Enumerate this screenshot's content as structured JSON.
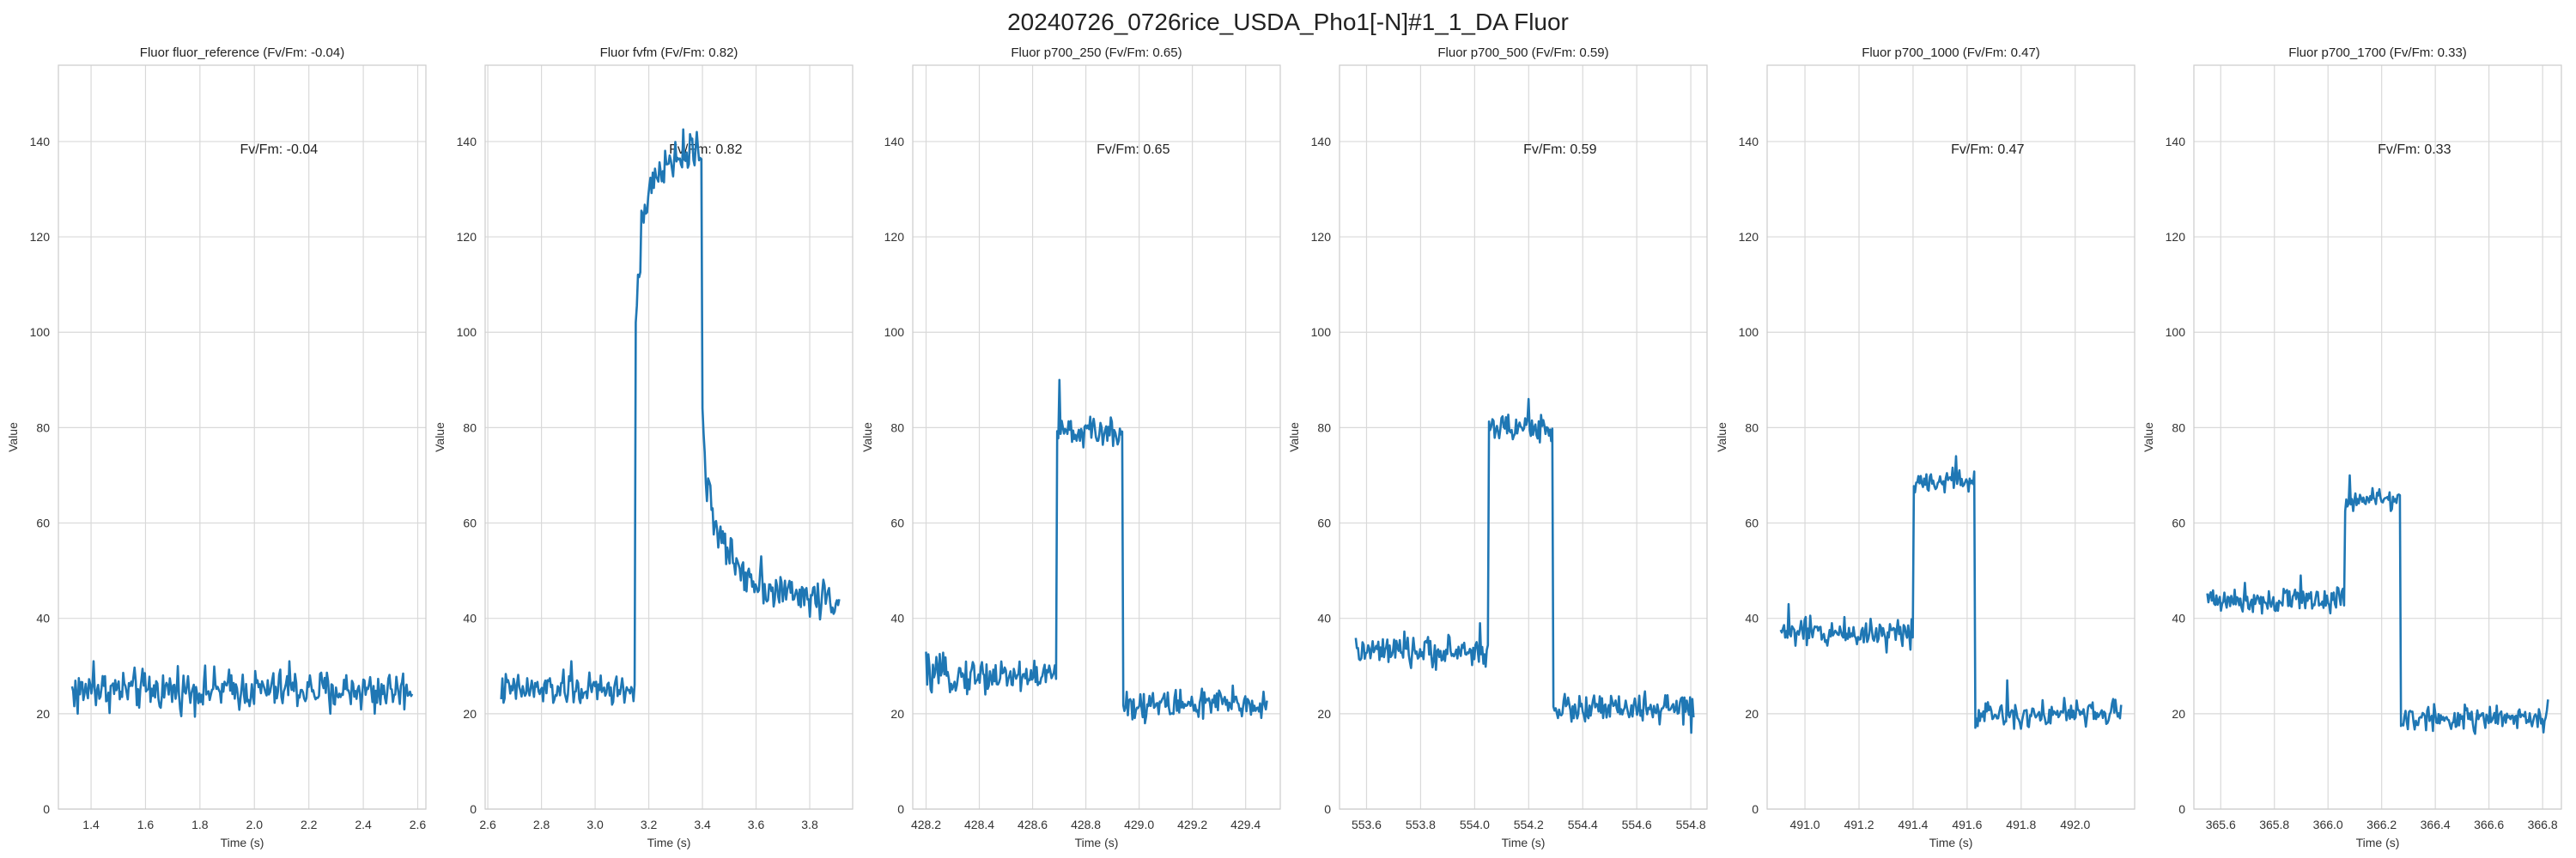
{
  "suptitle": "20240726_0726rice_USDA_Pho1[-N]#1_1_DA Fluor",
  "colors": {
    "series": "#1f77b4",
    "grid": "#d9d9d9"
  },
  "chart_data": [
    {
      "type": "line",
      "title": "Fluor fluor_reference (Fv/Fm: -0.04)",
      "annotation": "Fv/Fm: -0.04",
      "xlabel": "Time (s)",
      "ylabel": "Value",
      "xlim": [
        1.28,
        2.63
      ],
      "ylim": [
        0,
        156
      ],
      "xticks": [
        1.4,
        1.6,
        1.8,
        2.0,
        2.2,
        2.4,
        2.6
      ],
      "xticklabels": [
        "1.4",
        "1.6",
        "1.8",
        "2.0",
        "2.2",
        "2.4",
        "2.6"
      ],
      "yticks": [
        0,
        20,
        40,
        60,
        80,
        100,
        120,
        140
      ],
      "yticklabels": [
        "0",
        "20",
        "40",
        "60",
        "80",
        "100",
        "120",
        "140"
      ],
      "grid": true,
      "x_range": [
        1.33,
        2.58
      ],
      "segments": [
        {
          "from": 1.33,
          "to": 2.58,
          "base": 25,
          "amp": 3.2
        }
      ],
      "peaks": [
        {
          "x": 1.41,
          "y": 31
        },
        {
          "x": 1.35,
          "y": 20
        },
        {
          "x": 1.72,
          "y": 30
        },
        {
          "x": 2.13,
          "y": 31
        },
        {
          "x": 2.28,
          "y": 20
        },
        {
          "x": 2.44,
          "y": 20
        }
      ]
    },
    {
      "type": "line",
      "title": "Fluor fvfm (Fv/Fm: 0.82)",
      "annotation": "Fv/Fm: 0.82",
      "xlabel": "Time (s)",
      "ylabel": "Value",
      "xlim": [
        2.59,
        3.96
      ],
      "ylim": [
        0,
        156
      ],
      "xticks": [
        2.6,
        2.8,
        3.0,
        3.2,
        3.4,
        3.6,
        3.8
      ],
      "xticklabels": [
        "2.6",
        "2.8",
        "3.0",
        "3.2",
        "3.4",
        "3.6",
        "3.8"
      ],
      "yticks": [
        0,
        20,
        40,
        60,
        80,
        100,
        120,
        140
      ],
      "yticklabels": [
        "0",
        "20",
        "40",
        "60",
        "80",
        "100",
        "120",
        "140"
      ],
      "grid": true,
      "x_range": [
        2.65,
        3.91
      ],
      "segments": [
        {
          "from": 2.65,
          "to": 3.15,
          "base": 25,
          "amp": 2.6
        },
        {
          "from": 3.15,
          "to": 3.17,
          "base": 100,
          "amp": 6,
          "end": 112
        },
        {
          "from": 3.17,
          "to": 3.4,
          "base": 121,
          "amp": 3,
          "end": 138
        },
        {
          "from": 3.4,
          "to": 3.44,
          "base": 85,
          "amp": 3,
          "end": 65
        },
        {
          "from": 3.44,
          "to": 3.91,
          "base": 60,
          "amp": 3,
          "end": 44
        }
      ],
      "peaks": [
        {
          "x": 3.38,
          "y": 142
        },
        {
          "x": 2.91,
          "y": 31
        },
        {
          "x": 3.62,
          "y": 53
        }
      ]
    },
    {
      "type": "line",
      "title": "Fluor p700_250 (Fv/Fm: 0.65)",
      "annotation": "Fv/Fm: 0.65",
      "xlabel": "Time (s)",
      "ylabel": "Value",
      "xlim": [
        428.15,
        429.53
      ],
      "ylim": [
        0,
        156
      ],
      "xticks": [
        428.2,
        428.4,
        428.6,
        428.8,
        429.0,
        429.2,
        429.4
      ],
      "xticklabels": [
        "428.2",
        "428.4",
        "428.6",
        "428.8",
        "429.0",
        "429.2",
        "429.4"
      ],
      "yticks": [
        0,
        20,
        40,
        60,
        80,
        100,
        120,
        140
      ],
      "yticklabels": [
        "0",
        "20",
        "40",
        "60",
        "80",
        "100",
        "120",
        "140"
      ],
      "grid": true,
      "x_range": [
        428.2,
        429.48
      ],
      "segments": [
        {
          "from": 428.2,
          "to": 428.69,
          "base": 28,
          "amp": 2.8
        },
        {
          "from": 428.69,
          "to": 428.94,
          "base": 79,
          "amp": 2.2
        },
        {
          "from": 428.94,
          "to": 429.48,
          "base": 22,
          "amp": 2.6
        }
      ],
      "peaks": [
        {
          "x": 428.7,
          "y": 90
        },
        {
          "x": 428.2,
          "y": 33
        },
        {
          "x": 429.02,
          "y": 18
        }
      ]
    },
    {
      "type": "line",
      "title": "Fluor p700_500 (Fv/Fm: 0.59)",
      "annotation": "Fv/Fm: 0.59",
      "xlabel": "Time (s)",
      "ylabel": "Value",
      "xlim": [
        553.5,
        554.86
      ],
      "ylim": [
        0,
        156
      ],
      "xticks": [
        553.6,
        553.8,
        554.0,
        554.2,
        554.4,
        554.6,
        554.8
      ],
      "xticklabels": [
        "553.6",
        "553.8",
        "554.0",
        "554.2",
        "554.4",
        "554.6",
        "554.8"
      ],
      "yticks": [
        0,
        20,
        40,
        60,
        80,
        100,
        120,
        140
      ],
      "yticklabels": [
        "0",
        "20",
        "40",
        "60",
        "80",
        "100",
        "120",
        "140"
      ],
      "grid": true,
      "x_range": [
        553.56,
        554.81
      ],
      "segments": [
        {
          "from": 553.56,
          "to": 554.05,
          "base": 33,
          "amp": 2.4
        },
        {
          "from": 554.05,
          "to": 554.29,
          "base": 80,
          "amp": 2.2
        },
        {
          "from": 554.29,
          "to": 554.81,
          "base": 21,
          "amp": 2.4
        }
      ],
      "peaks": [
        {
          "x": 554.2,
          "y": 86
        },
        {
          "x": 554.02,
          "y": 39
        },
        {
          "x": 554.8,
          "y": 16
        }
      ]
    },
    {
      "type": "line",
      "title": "Fluor p700_1000 (Fv/Fm: 0.47)",
      "annotation": "Fv/Fm: 0.47",
      "xlabel": "Time (s)",
      "ylabel": "Value",
      "xlim": [
        490.86,
        492.22
      ],
      "ylim": [
        0,
        156
      ],
      "xticks": [
        491.0,
        491.2,
        491.4,
        491.6,
        491.8,
        492.0
      ],
      "xticklabels": [
        "491.0",
        "491.2",
        "491.4",
        "491.6",
        "491.8",
        "492.0"
      ],
      "yticks": [
        0,
        20,
        40,
        60,
        80,
        100,
        120,
        140
      ],
      "yticklabels": [
        "0",
        "20",
        "40",
        "60",
        "80",
        "100",
        "120",
        "140"
      ],
      "grid": true,
      "x_range": [
        490.91,
        492.17
      ],
      "segments": [
        {
          "from": 490.91,
          "to": 491.4,
          "base": 37,
          "amp": 2.4
        },
        {
          "from": 491.4,
          "to": 491.63,
          "base": 69,
          "amp": 2.0
        },
        {
          "from": 491.63,
          "to": 492.17,
          "base": 20,
          "amp": 2.2
        }
      ],
      "peaks": [
        {
          "x": 490.94,
          "y": 43
        },
        {
          "x": 491.56,
          "y": 74
        },
        {
          "x": 491.75,
          "y": 27
        }
      ]
    },
    {
      "type": "line",
      "title": "Fluor p700_1700 (Fv/Fm: 0.33)",
      "annotation": "Fv/Fm: 0.33",
      "xlabel": "Time (s)",
      "ylabel": "Value",
      "xlim": [
        365.5,
        366.87
      ],
      "ylim": [
        0,
        156
      ],
      "xticks": [
        365.6,
        365.8,
        366.0,
        366.2,
        366.4,
        366.6,
        366.8
      ],
      "xticklabels": [
        "365.6",
        "365.8",
        "366.0",
        "366.2",
        "366.4",
        "366.6",
        "366.8"
      ],
      "yticks": [
        0,
        20,
        40,
        60,
        80,
        100,
        120,
        140
      ],
      "yticklabels": [
        "0",
        "20",
        "40",
        "60",
        "80",
        "100",
        "120",
        "140"
      ],
      "grid": true,
      "x_range": [
        365.55,
        366.82
      ],
      "segments": [
        {
          "from": 365.55,
          "to": 366.06,
          "base": 44,
          "amp": 2.2
        },
        {
          "from": 366.06,
          "to": 366.27,
          "base": 65,
          "amp": 2.0
        },
        {
          "from": 366.27,
          "to": 366.82,
          "base": 19,
          "amp": 2.0
        }
      ],
      "peaks": [
        {
          "x": 366.08,
          "y": 70
        },
        {
          "x": 365.9,
          "y": 49
        },
        {
          "x": 366.82,
          "y": 23
        }
      ]
    }
  ]
}
